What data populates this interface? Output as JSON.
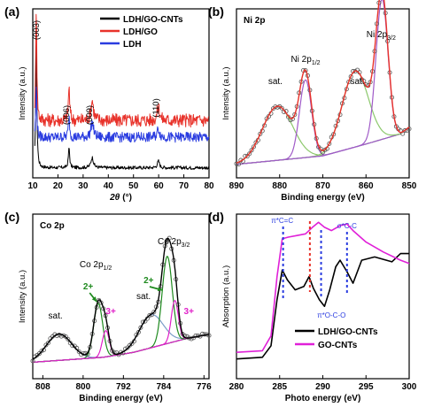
{
  "chart_data": [
    {
      "panel_label": "(a)",
      "type": "line",
      "xlabel_prefix": "2",
      "xlabel_symbol": "θ",
      "xlabel_unit": "(°)",
      "ylabel": "Intensity (a.u.)",
      "xlim": [
        10,
        80
      ],
      "xticks": [
        10,
        20,
        30,
        40,
        50,
        60,
        70,
        80
      ],
      "legend_position": "top-right",
      "peak_labels": [
        {
          "text": "(003)",
          "x": 11.4
        },
        {
          "text": "(006)",
          "x": 24.4
        },
        {
          "text": "(009)",
          "x": 33.6
        },
        {
          "text": "(110)",
          "x": 59.9
        }
      ],
      "series": [
        {
          "name": "LDH/GO-CNTs",
          "color": "#000000",
          "baseline": 0.06,
          "noise": 0.01,
          "peaks": [
            [
              11.4,
              0.82,
              0.25
            ],
            [
              24.4,
              0.12,
              0.3
            ],
            [
              33.6,
              0.06,
              0.6
            ],
            [
              59.9,
              0.04,
              0.5
            ]
          ]
        },
        {
          "name": "LDH/GO",
          "color": "#e8322a",
          "baseline": 0.34,
          "noise": 0.04,
          "peaks": [
            [
              11.4,
              0.7,
              0.25
            ],
            [
              24.4,
              0.2,
              0.3
            ],
            [
              33.6,
              0.12,
              0.6
            ],
            [
              59.9,
              0.08,
              0.6
            ]
          ]
        },
        {
          "name": "LDH",
          "color": "#2a3ce0",
          "baseline": 0.24,
          "noise": 0.03,
          "peaks": [
            [
              11.4,
              0.3,
              0.25
            ],
            [
              24.4,
              0.12,
              0.3
            ],
            [
              33.6,
              0.09,
              0.6
            ],
            [
              59.9,
              0.05,
              0.6
            ]
          ]
        }
      ]
    },
    {
      "panel_label": "(b)",
      "type": "line",
      "title": "Ni 2p",
      "xlabel": "Binding energy (eV)",
      "ylabel": "Intensity (a.u.)",
      "xlim": [
        890,
        850
      ],
      "xticks": [
        890,
        880,
        870,
        860,
        850
      ],
      "annotations": [
        {
          "text": "sat.",
          "x": 881
        },
        {
          "text": "Ni 2p",
          "sub": "1/2",
          "x": 874
        },
        {
          "text": "sat.",
          "x": 862
        },
        {
          "text": "Ni 2p",
          "sub": "3/2",
          "x": 856.5
        }
      ],
      "background": [
        [
          890,
          0.08
        ],
        [
          870,
          0.13
        ],
        [
          860,
          0.2
        ],
        [
          852,
          0.26
        ],
        [
          850,
          0.3
        ]
      ],
      "components": [
        {
          "center": 880.5,
          "height": 0.32,
          "width": 3.5,
          "color": "#8cc86c"
        },
        {
          "center": 874.0,
          "height": 0.46,
          "width": 1.4,
          "color": "#a05ac8"
        },
        {
          "center": 862.5,
          "height": 0.45,
          "width": 3.0,
          "color": "#8cc86c"
        },
        {
          "center": 856.3,
          "height": 0.83,
          "width": 1.4,
          "color": "#a05ac8"
        }
      ],
      "fit_color": "#e8322a",
      "data_color": "#555555"
    },
    {
      "panel_label": "(c)",
      "type": "line",
      "title": "Co 2p",
      "xlabel": "Binding energy (eV)",
      "ylabel": "Intensity (a.u.)",
      "xlim": [
        810,
        775
      ],
      "xticks": [
        808,
        800,
        792,
        784,
        776
      ],
      "annotations": [
        {
          "text": "sat.",
          "x": 805.5
        },
        {
          "text": "Co 2p",
          "sub": "1/2",
          "x": 797.5
        },
        {
          "text": "sat.",
          "x": 788
        },
        {
          "text": "Co 2p",
          "sub": "3/2",
          "x": 782
        },
        {
          "text": "2+",
          "x": 799,
          "color": "#1f8a1f"
        },
        {
          "text": "3+",
          "x": 794.5,
          "color": "#e020c8"
        },
        {
          "text": "2+",
          "x": 787,
          "color": "#1f8a1f"
        },
        {
          "text": "3+",
          "x": 779,
          "color": "#e020c8"
        }
      ],
      "background": [
        [
          810,
          0.1
        ],
        [
          796,
          0.13
        ],
        [
          790,
          0.16
        ],
        [
          780,
          0.24
        ],
        [
          775,
          0.27
        ]
      ],
      "components": [
        {
          "center": 804.8,
          "height": 0.16,
          "width": 2.5,
          "color": "#7a9cc8"
        },
        {
          "center": 797.0,
          "height": 0.33,
          "width": 0.9,
          "color": "#1f8a1f"
        },
        {
          "center": 795.5,
          "height": 0.16,
          "width": 0.7,
          "color": "#e020c8"
        },
        {
          "center": 786.5,
          "height": 0.2,
          "width": 2.4,
          "color": "#7a9cc8"
        },
        {
          "center": 783.3,
          "height": 0.53,
          "width": 1.0,
          "color": "#1f8a1f"
        },
        {
          "center": 781.8,
          "height": 0.25,
          "width": 0.7,
          "color": "#e020c8"
        }
      ],
      "fit_color": "#000000",
      "data_color": "#555555"
    },
    {
      "panel_label": "(d)",
      "type": "line",
      "xlabel": "Photo energy (eV)",
      "ylabel": "Absorption (a.u.)",
      "xlim": [
        280,
        300
      ],
      "xticks": [
        280,
        285,
        290,
        295,
        300
      ],
      "legend_position": "bottom-right",
      "transition_lines": [
        {
          "x": 285.4,
          "color": "#2a3ce0",
          "label": "π*C=C"
        },
        {
          "x": 288.5,
          "color": "#e8322a",
          "label": ""
        },
        {
          "x": 289.8,
          "color": "#2a3ce0",
          "label": "π*O-C-O"
        },
        {
          "x": 292.8,
          "color": "#2a3ce0",
          "label": "σ*C-C"
        }
      ],
      "series": [
        {
          "name": "LDH/GO-CNTs",
          "color": "#000000",
          "points": [
            [
              280,
              0.12
            ],
            [
              283,
              0.13
            ],
            [
              284,
              0.2
            ],
            [
              284.7,
              0.48
            ],
            [
              285.3,
              0.66
            ],
            [
              285.9,
              0.6
            ],
            [
              286.8,
              0.54
            ],
            [
              287.8,
              0.56
            ],
            [
              288.4,
              0.62
            ],
            [
              288.9,
              0.55
            ],
            [
              289.6,
              0.48
            ],
            [
              290.2,
              0.44
            ],
            [
              290.8,
              0.54
            ],
            [
              291.5,
              0.68
            ],
            [
              292.0,
              0.72
            ],
            [
              292.8,
              0.65
            ],
            [
              293.5,
              0.58
            ],
            [
              294.5,
              0.72
            ],
            [
              296,
              0.74
            ],
            [
              298,
              0.71
            ],
            [
              299,
              0.76
            ],
            [
              300,
              0.76
            ]
          ]
        },
        {
          "name": "GO-CNTs",
          "color": "#e020d8",
          "points": [
            [
              280,
              0.16
            ],
            [
              283,
              0.17
            ],
            [
              284,
              0.26
            ],
            [
              284.7,
              0.62
            ],
            [
              285.3,
              0.85
            ],
            [
              286.0,
              0.86
            ],
            [
              287.0,
              0.87
            ],
            [
              288.0,
              0.88
            ],
            [
              288.8,
              0.92
            ],
            [
              289.5,
              0.95
            ],
            [
              290.2,
              0.92
            ],
            [
              291.0,
              0.9
            ],
            [
              292.0,
              0.93
            ],
            [
              292.8,
              0.94
            ],
            [
              293.5,
              0.9
            ],
            [
              295,
              0.83
            ],
            [
              297,
              0.77
            ],
            [
              299,
              0.72
            ],
            [
              300,
              0.7
            ]
          ]
        }
      ]
    }
  ]
}
